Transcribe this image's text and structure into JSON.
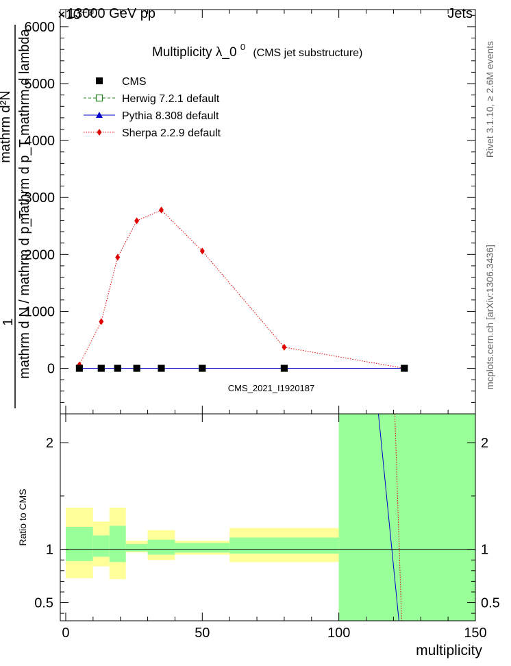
{
  "header": {
    "left": "13000 GeV pp",
    "right": "Jets",
    "exponent": "×10⁻³"
  },
  "chart_data": [
    {
      "type": "line",
      "title": "Multiplicity  λ_0⁰ (CMS jet substructure)",
      "title_main": "Multiplicity  λ_0",
      "title_sup": "0",
      "title_sub": "(CMS jet substructure)",
      "ylabel_top": "1",
      "ylabel_frac_num": "mathrm d²N",
      "ylabel_frac_den": "mathrm d p_T mathrm d lambda",
      "ylabel_frac_left_num": "mathrm d N / mathrm d p_T",
      "ylim": [
        -800,
        6300
      ],
      "yticks": [
        0,
        1000,
        2000,
        3000,
        4000,
        5000,
        6000
      ],
      "yticklabels": [
        "0",
        "1000",
        "2000",
        "3000",
        "4000",
        "5000",
        "6000"
      ],
      "xlim": [
        -2,
        150
      ],
      "watermark": "CMS_2021_I1920187",
      "legend_position": "top-left",
      "series": [
        {
          "name": "CMS",
          "color": "#000000",
          "marker": "square-filled",
          "x": [
            5,
            13,
            19,
            26,
            35,
            50,
            80,
            124
          ],
          "y": [
            0,
            0,
            0,
            0,
            0,
            0,
            0,
            0
          ]
        },
        {
          "name": "Herwig 7.2.1 default",
          "color": "#1f7f1f",
          "marker": "square-open",
          "line": "dashed",
          "x": [
            5,
            13,
            19,
            26,
            35,
            50,
            80,
            124
          ],
          "y": [
            0,
            0,
            0,
            0,
            0,
            0,
            0,
            0
          ]
        },
        {
          "name": "Pythia 8.308 default",
          "color": "#0000cc",
          "marker": "triangle",
          "line": "solid",
          "x": [
            5,
            13,
            19,
            26,
            35,
            50,
            80,
            124
          ],
          "y": [
            0,
            0,
            0,
            0,
            0,
            0,
            0,
            0
          ]
        },
        {
          "name": "Sherpa 2.2.9 default",
          "color": "#e00000",
          "marker": "diamond",
          "line": "dotted",
          "x": [
            5,
            13,
            19,
            26,
            35,
            50,
            80,
            124
          ],
          "y": [
            60,
            820,
            1950,
            2590,
            2780,
            2060,
            370,
            0
          ]
        }
      ]
    },
    {
      "type": "area",
      "ylabel": "Ratio to CMS",
      "xlabel": "multiplicity",
      "ylim": [
        0.33,
        2.27
      ],
      "xlim": [
        -2,
        150
      ],
      "yticks": [
        0.5,
        1,
        2
      ],
      "yticklabels": [
        "0.5",
        "1",
        "2"
      ],
      "xticks": [
        0,
        50,
        100,
        150
      ],
      "xticklabels": [
        "0",
        "50",
        "100",
        "150"
      ],
      "bands": [
        {
          "x0": 0,
          "x1": 10,
          "outer": [
            0.73,
            1.39
          ],
          "inner": [
            0.89,
            1.21
          ]
        },
        {
          "x0": 10,
          "x1": 16,
          "outer": [
            0.84,
            1.26
          ],
          "inner": [
            0.93,
            1.13
          ]
        },
        {
          "x0": 16,
          "x1": 22,
          "outer": [
            0.72,
            1.39
          ],
          "inner": [
            0.88,
            1.22
          ]
        },
        {
          "x0": 22,
          "x1": 30,
          "outer": [
            0.97,
            1.08
          ],
          "inner": [
            0.98,
            1.05
          ]
        },
        {
          "x0": 30,
          "x1": 40,
          "outer": [
            0.9,
            1.18
          ],
          "inner": [
            0.95,
            1.09
          ]
        },
        {
          "x0": 40,
          "x1": 60,
          "outer": [
            0.95,
            1.08
          ],
          "inner": [
            0.97,
            1.06
          ]
        },
        {
          "x0": 60,
          "x1": 100,
          "outer": [
            0.88,
            1.2
          ],
          "inner": [
            0.96,
            1.11
          ]
        },
        {
          "x0": 100,
          "x1": 150,
          "outer": [
            0.33,
            2.27
          ],
          "inner": [
            0.33,
            2.27
          ]
        }
      ],
      "lines": [
        {
          "name": "Pythia 8.308 default",
          "color": "#0000cc",
          "x": [
            114.5,
            122
          ],
          "y": [
            2.27,
            0.33
          ]
        },
        {
          "name": "Sherpa 2.2.9 default",
          "color": "#e00000",
          "x": [
            120.5,
            123
          ],
          "y": [
            2.27,
            0.33
          ]
        }
      ],
      "outer_band_color": "#ffff99",
      "inner_band_color": "#99ff99"
    }
  ],
  "side": {
    "rivet": "Rivet 3.1.10, ≥ 2.6M events",
    "mcplots": "mcplots.cern.ch [arXiv:1306.3436]"
  }
}
